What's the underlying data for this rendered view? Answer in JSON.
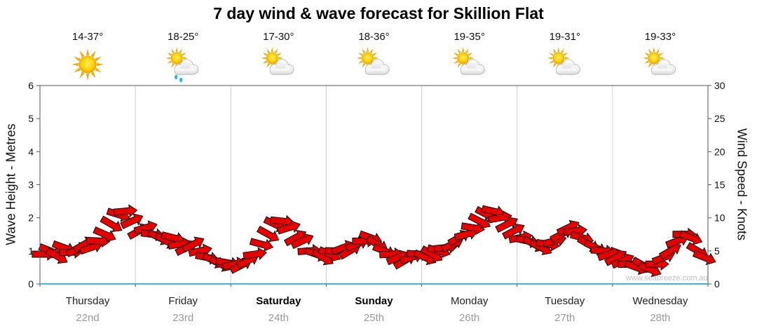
{
  "title": "7 day wind & wave forecast for Skillion Flat",
  "watermark": "www.seabreeze.com.au",
  "axes": {
    "left_label": "Wave Height - Metres",
    "right_label": "Wind Speed - Knots",
    "left_ticks": [
      0,
      1,
      2,
      3,
      4,
      5,
      6
    ],
    "right_ticks": [
      0,
      5,
      10,
      15,
      20,
      25,
      30
    ]
  },
  "days": [
    {
      "name": "Thursday",
      "date": "22nd",
      "temp": "14-37°",
      "icon": "sun-icon",
      "weekend": false
    },
    {
      "name": "Friday",
      "date": "23rd",
      "temp": "18-25°",
      "icon": "sun-cloud-rain-icon",
      "weekend": false
    },
    {
      "name": "Saturday",
      "date": "24th",
      "temp": "17-30°",
      "icon": "sun-cloud-icon",
      "weekend": true
    },
    {
      "name": "Sunday",
      "date": "25th",
      "temp": "18-36°",
      "icon": "sun-cloud-icon",
      "weekend": true
    },
    {
      "name": "Monday",
      "date": "26th",
      "temp": "19-35°",
      "icon": "sun-cloud-icon",
      "weekend": false
    },
    {
      "name": "Tuesday",
      "date": "27th",
      "temp": "19-31°",
      "icon": "sun-cloud-icon",
      "weekend": false
    },
    {
      "name": "Wednesday",
      "date": "28th",
      "temp": "19-33°",
      "icon": "sun-cloud-icon",
      "weekend": false
    }
  ],
  "chart_data": {
    "type": "line",
    "title": "7 day wind & wave forecast for Skillion Flat",
    "categories": [
      "Thursday 22nd",
      "Friday 23rd",
      "Saturday 24th",
      "Sunday 25th",
      "Monday 26th",
      "Tuesday 27th",
      "Wednesday 28th"
    ],
    "samples_per_day": 14,
    "series": [
      {
        "name": "Wind Speed",
        "unit": "knots",
        "marker": "wind-arrow",
        "values": [
          4.5,
          5,
          4.2,
          5.5,
          4.8,
          5.2,
          6,
          5.5,
          6.5,
          7.5,
          9,
          10.5,
          11,
          9.5,
          8,
          8.5,
          7.5,
          7,
          6.5,
          7,
          6,
          5.5,
          6,
          5,
          4,
          3.5,
          3,
          3.2,
          3,
          2.8,
          3.5,
          4.5,
          6,
          7.5,
          9,
          9.5,
          8.5,
          7,
          6.5,
          5,
          4.5,
          4,
          4.5,
          5,
          5.5,
          5,
          6,
          6.5,
          7,
          6,
          5,
          4.5,
          4,
          3.5,
          4,
          4.5,
          4,
          4.5,
          5,
          5.5,
          6,
          7,
          7.5,
          8.5,
          9.5,
          10.5,
          11,
          10,
          9,
          8,
          7,
          6.5,
          6,
          5.5,
          6,
          6.5,
          7.5,
          8.5,
          8,
          7,
          6,
          5.5,
          5,
          4.5,
          4,
          3.5,
          3,
          2.5,
          2.8,
          2.2,
          3,
          4,
          5,
          6.5,
          7.5,
          7,
          5,
          4
        ]
      }
    ],
    "wind_dirs_deg": [
      0,
      22,
      30,
      20,
      -2,
      -23,
      -30,
      -19,
      3,
      24,
      30,
      17,
      -5,
      -25,
      -29,
      -16,
      7,
      26,
      29,
      14,
      -9,
      -27,
      -28,
      -12,
      11,
      27,
      27,
      10,
      -13,
      -28,
      -27,
      -8,
      15,
      29,
      26,
      6,
      -17,
      -29,
      -25,
      -4,
      19,
      30,
      24,
      1,
      -21,
      -30,
      -22,
      -1,
      20,
      30,
      21,
      -3,
      -23,
      -30,
      -18,
      4,
      25,
      30,
      16,
      -6,
      -26,
      -29,
      -15,
      9,
      27,
      28,
      13,
      -10,
      -27,
      -28,
      -11,
      12,
      28,
      27,
      9,
      -14,
      -28,
      -26,
      -7,
      16,
      29,
      25,
      5,
      -18,
      -29,
      -24,
      -2,
      20,
      30,
      23,
      0,
      -21,
      -30,
      -21,
      0,
      21,
      30,
      22
    ],
    "axis_left": {
      "label": "Wave Height - Metres",
      "range": [
        0,
        6
      ],
      "unit": "m"
    },
    "axis_right": {
      "label": "Wind Speed - Knots",
      "range": [
        0,
        30
      ],
      "unit": "knots"
    },
    "legend": "none",
    "grid": "vertical day separators only"
  },
  "colors": {
    "arrow_fill": "#e60000",
    "arrow_stroke": "#000000",
    "grid": "#cccccc",
    "axis": "#555555",
    "baseline_blue": "#45b6d8",
    "day_text": "#222222",
    "weekend_text": "#000000",
    "date_text": "#999999",
    "tick_text": "#111111",
    "sun_core": "#ffd200",
    "sun_ray": "#f6a800",
    "cloud_fill": "#ececec",
    "cloud_stroke": "#8a8a8a",
    "rain": "#2ab4e8"
  }
}
